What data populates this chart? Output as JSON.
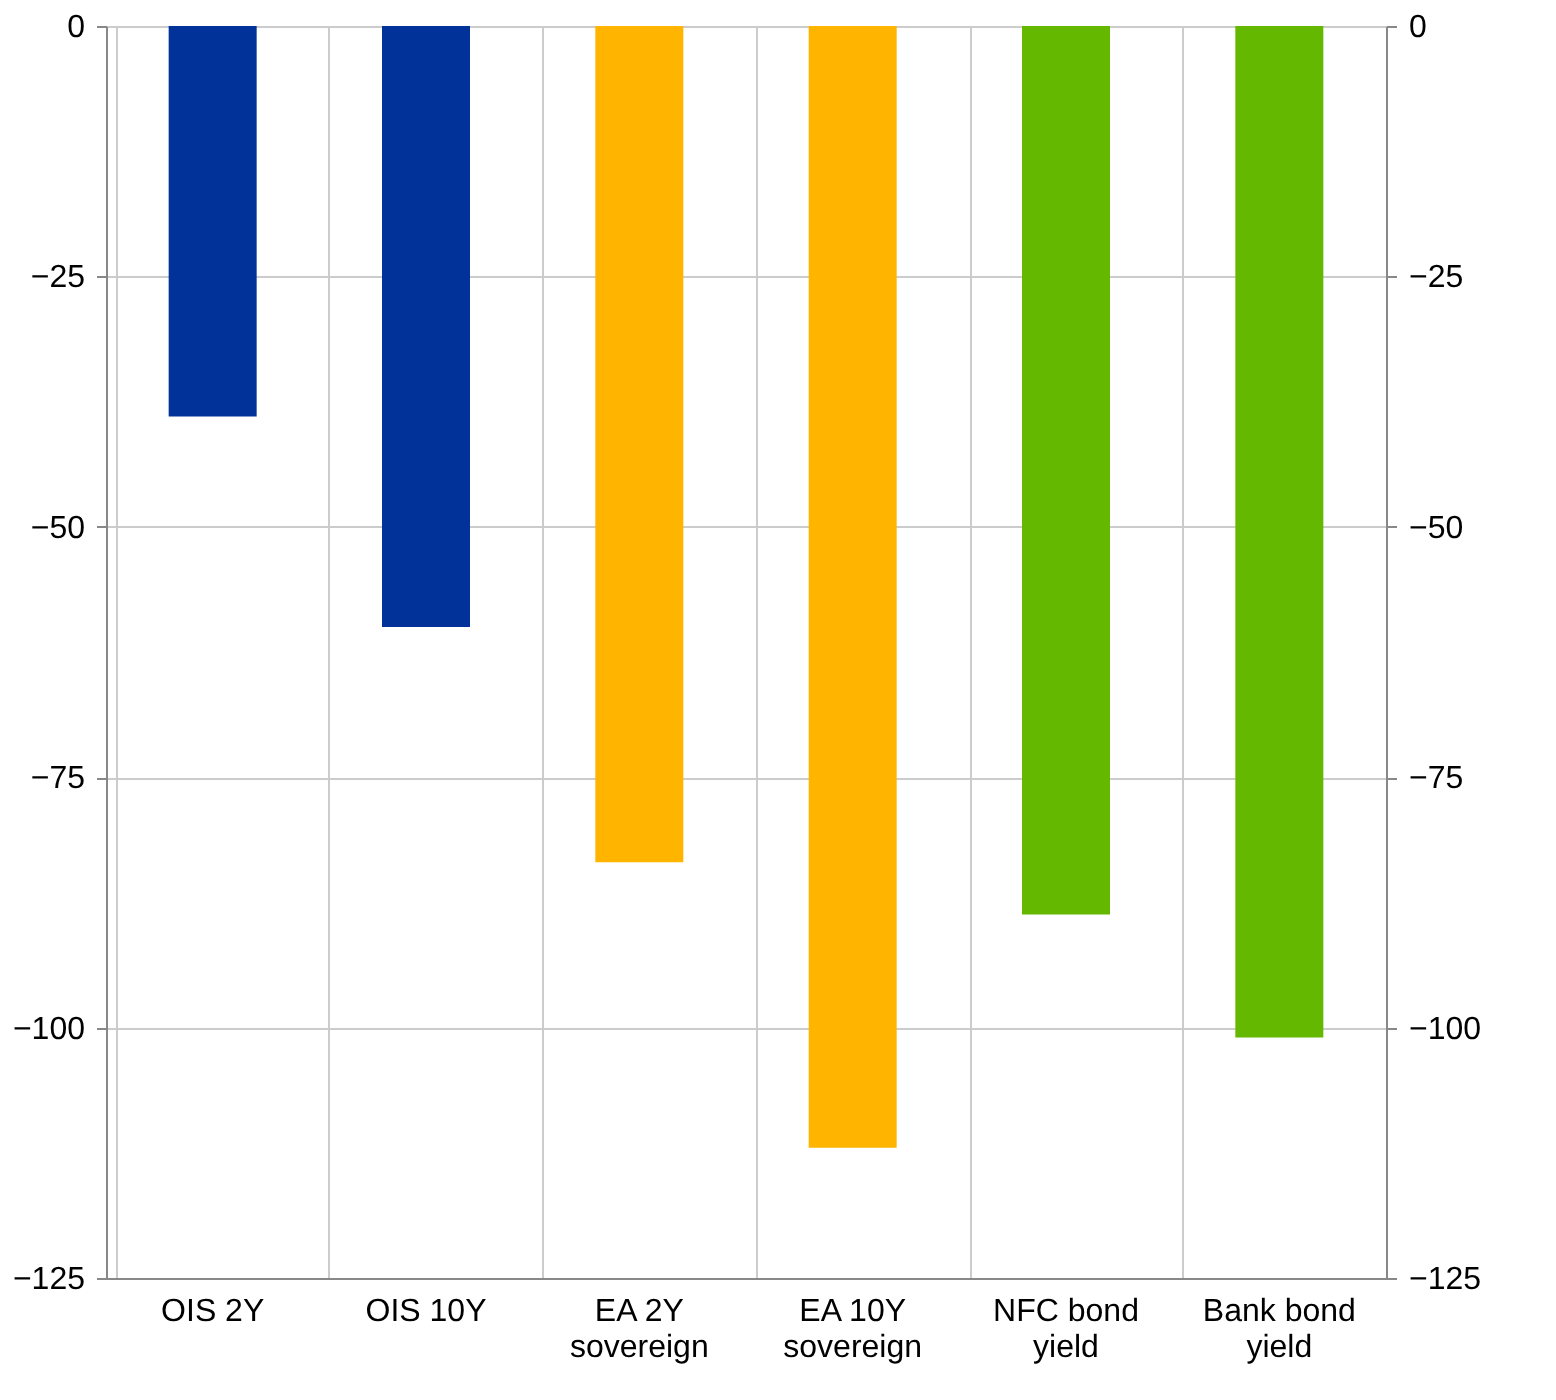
{
  "chart_data": {
    "type": "bar",
    "categories": [
      "OIS 2Y",
      "OIS 10Y",
      "EA 2Y sovereign",
      "EA 10Y sovereign",
      "NFC bond yield",
      "Bank bond yield"
    ],
    "values": [
      -39,
      -60,
      -83.5,
      -112,
      -88.7,
      -101
    ],
    "colors": [
      "#003299",
      "#003299",
      "#ffb400",
      "#ffb400",
      "#65b800",
      "#65b800"
    ],
    "ylim": [
      -125,
      0
    ],
    "yticks": [
      0,
      -25,
      -50,
      -75,
      -100,
      -125
    ],
    "y2lim": [
      -125,
      0
    ],
    "y2ticks": [
      0,
      -25,
      -50,
      -75,
      -100,
      -125
    ],
    "grid": true
  }
}
